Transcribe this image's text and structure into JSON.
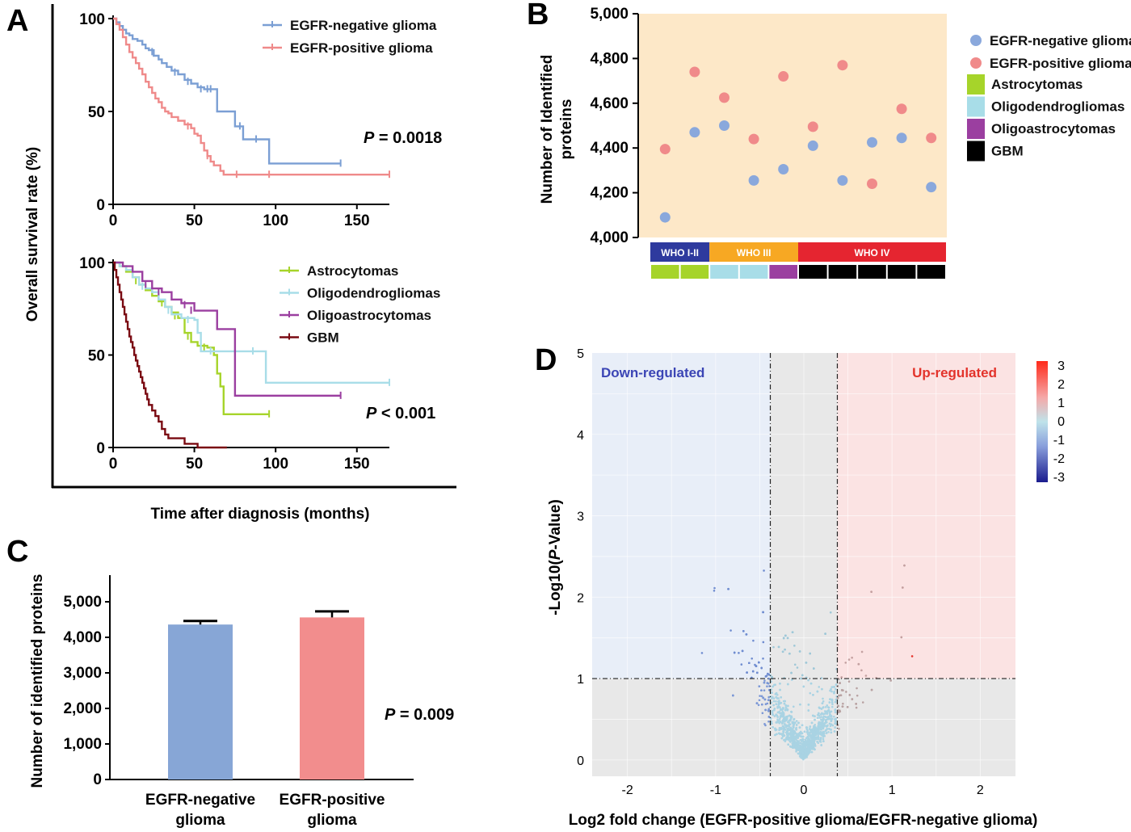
{
  "panels": {
    "a": "A",
    "b": "B",
    "c": "C",
    "d": "D"
  },
  "colors": {
    "egfr_neg_line": "#7b9fd4",
    "egfr_pos_line": "#ef8a8a",
    "astro": "#a6d42a",
    "oligo": "#a8dde8",
    "oligoastro": "#9b3fa0",
    "gbm": "#7a0a12",
    "egfr_neg_bar": "#87a6d6",
    "egfr_pos_bar": "#f28d8d",
    "who12": "#2e3a9e",
    "who3": "#f7a823",
    "who4": "#e52530",
    "scatter_bg": "#fde8c8",
    "down_bg": "#e8eef8",
    "up_bg": "#fbe3e3",
    "mid_bg": "#e8e8e8"
  },
  "chart_data": [
    {
      "id": "A-top",
      "type": "line",
      "subtype": "kaplan-meier",
      "xlabel": "Time after diagnosis (months)",
      "ylabel": "Overall survival rate (%)",
      "xlim": [
        0,
        170
      ],
      "ylim": [
        0,
        100
      ],
      "xticks": [
        "0",
        "50",
        "100",
        "150"
      ],
      "yticks": [
        "0",
        "50",
        "100"
      ],
      "pvalue_label": "P",
      "pvalue_text": " = 0.0018",
      "legend_position": "top-right",
      "series": [
        {
          "name": "EGFR-negative glioma",
          "points": [
            [
              0,
              100
            ],
            [
              2,
              98
            ],
            [
              4,
              96
            ],
            [
              6,
              94
            ],
            [
              8,
              92
            ],
            [
              10,
              91
            ],
            [
              12,
              89
            ],
            [
              15,
              88
            ],
            [
              18,
              86
            ],
            [
              20,
              84
            ],
            [
              22,
              83
            ],
            [
              25,
              80
            ],
            [
              28,
              78
            ],
            [
              30,
              76
            ],
            [
              33,
              74
            ],
            [
              36,
              72
            ],
            [
              40,
              70
            ],
            [
              44,
              67
            ],
            [
              48,
              65
            ],
            [
              52,
              63
            ],
            [
              56,
              62
            ],
            [
              62,
              62
            ],
            [
              64,
              50
            ],
            [
              74,
              50
            ],
            [
              75,
              42
            ],
            [
              80,
              35
            ],
            [
              95,
              35
            ],
            [
              96,
              22
            ],
            [
              140,
              22
            ]
          ],
          "censored": [
            [
              24,
              82
            ],
            [
              38,
              71
            ],
            [
              46,
              66
            ],
            [
              54,
              62
            ],
            [
              58,
              62
            ],
            [
              60,
              62
            ],
            [
              78,
              42
            ],
            [
              88,
              35
            ],
            [
              140,
              22
            ]
          ]
        },
        {
          "name": "EGFR-positive glioma",
          "points": [
            [
              0,
              100
            ],
            [
              2,
              97
            ],
            [
              4,
              94
            ],
            [
              6,
              90
            ],
            [
              8,
              86
            ],
            [
              10,
              82
            ],
            [
              12,
              79
            ],
            [
              14,
              76
            ],
            [
              16,
              73
            ],
            [
              18,
              70
            ],
            [
              20,
              66
            ],
            [
              22,
              63
            ],
            [
              24,
              60
            ],
            [
              26,
              57
            ],
            [
              28,
              55
            ],
            [
              30,
              52
            ],
            [
              32,
              50
            ],
            [
              34,
              49
            ],
            [
              36,
              47
            ],
            [
              40,
              45
            ],
            [
              44,
              43
            ],
            [
              48,
              41
            ],
            [
              50,
              38
            ],
            [
              52,
              37
            ],
            [
              54,
              33
            ],
            [
              56,
              29
            ],
            [
              58,
              26
            ],
            [
              60,
              23
            ],
            [
              62,
              21
            ],
            [
              66,
              18
            ],
            [
              68,
              16
            ],
            [
              170,
              16
            ]
          ],
          "censored": [
            [
              46,
              42
            ],
            [
              58,
              26
            ],
            [
              76,
              16
            ],
            [
              96,
              16
            ],
            [
              170,
              16
            ]
          ]
        }
      ]
    },
    {
      "id": "A-bottom",
      "type": "line",
      "subtype": "kaplan-meier",
      "xlabel": "Time after diagnosis (months)",
      "ylabel": "Overall survival rate (%)",
      "xlim": [
        0,
        170
      ],
      "ylim": [
        0,
        100
      ],
      "xticks": [
        "0",
        "50",
        "100",
        "150"
      ],
      "yticks": [
        "0",
        "50",
        "100"
      ],
      "pvalue_label": "P",
      "pvalue_text": " < 0.001",
      "legend_position": "top-right",
      "series": [
        {
          "name": "Astrocytomas",
          "points": [
            [
              0,
              100
            ],
            [
              4,
              98
            ],
            [
              8,
              95
            ],
            [
              12,
              92
            ],
            [
              16,
              88
            ],
            [
              20,
              85
            ],
            [
              24,
              82
            ],
            [
              28,
              79
            ],
            [
              32,
              76
            ],
            [
              36,
              73
            ],
            [
              40,
              70
            ],
            [
              44,
              62
            ],
            [
              48,
              57
            ],
            [
              52,
              55
            ],
            [
              58,
              54
            ],
            [
              62,
              50
            ],
            [
              64,
              40
            ],
            [
              66,
              33
            ],
            [
              68,
              18
            ],
            [
              96,
              18
            ]
          ],
          "censored": [
            [
              14,
              90
            ],
            [
              30,
              78
            ],
            [
              38,
              71
            ],
            [
              46,
              60
            ],
            [
              56,
              54
            ],
            [
              96,
              18
            ]
          ]
        },
        {
          "name": "Oligodendrogliomas",
          "points": [
            [
              0,
              100
            ],
            [
              4,
              98
            ],
            [
              8,
              96
            ],
            [
              12,
              92
            ],
            [
              16,
              88
            ],
            [
              20,
              86
            ],
            [
              24,
              84
            ],
            [
              28,
              80
            ],
            [
              32,
              76
            ],
            [
              36,
              72
            ],
            [
              42,
              70
            ],
            [
              50,
              69
            ],
            [
              52,
              62
            ],
            [
              54,
              52
            ],
            [
              90,
              52
            ],
            [
              94,
              35
            ],
            [
              170,
              35
            ]
          ],
          "censored": [
            [
              18,
              87
            ],
            [
              34,
              74
            ],
            [
              46,
              69
            ],
            [
              60,
              52
            ],
            [
              86,
              52
            ],
            [
              170,
              35
            ]
          ]
        },
        {
          "name": "Oligoastrocytomas",
          "points": [
            [
              0,
              100
            ],
            [
              6,
              98
            ],
            [
              12,
              95
            ],
            [
              18,
              90
            ],
            [
              24,
              86
            ],
            [
              30,
              84
            ],
            [
              36,
              80
            ],
            [
              42,
              78
            ],
            [
              50,
              74
            ],
            [
              62,
              74
            ],
            [
              64,
              64
            ],
            [
              74,
              64
            ],
            [
              75,
              28
            ],
            [
              140,
              28
            ]
          ],
          "censored": [
            [
              20,
              88
            ],
            [
              28,
              84
            ],
            [
              44,
              77
            ],
            [
              48,
              74
            ],
            [
              140,
              28
            ]
          ]
        },
        {
          "name": "GBM",
          "points": [
            [
              0,
              100
            ],
            [
              1,
              96
            ],
            [
              2,
              92
            ],
            [
              3,
              88
            ],
            [
              4,
              84
            ],
            [
              5,
              80
            ],
            [
              6,
              76
            ],
            [
              7,
              72
            ],
            [
              8,
              68
            ],
            [
              9,
              64
            ],
            [
              10,
              60
            ],
            [
              11,
              57
            ],
            [
              12,
              54
            ],
            [
              13,
              50
            ],
            [
              14,
              47
            ],
            [
              15,
              44
            ],
            [
              16,
              41
            ],
            [
              17,
              38
            ],
            [
              18,
              35
            ],
            [
              19,
              32
            ],
            [
              20,
              29
            ],
            [
              21,
              26
            ],
            [
              22,
              23
            ],
            [
              24,
              20
            ],
            [
              26,
              17
            ],
            [
              28,
              14
            ],
            [
              30,
              10
            ],
            [
              32,
              7
            ],
            [
              34,
              5
            ],
            [
              40,
              5
            ],
            [
              44,
              2
            ],
            [
              50,
              2
            ],
            [
              52,
              0
            ],
            [
              70,
              0
            ]
          ],
          "censored": []
        }
      ]
    },
    {
      "id": "B",
      "type": "scatter",
      "ylabel": "Number of Identified proteins",
      "ylim": [
        4000,
        5000
      ],
      "yticks": [
        "4,000",
        "4,200",
        "4,400",
        "4,600",
        "4,800",
        "5,000"
      ],
      "legend_position": "right",
      "n_samples": 10,
      "series": [
        {
          "name": "EGFR-negative glioma",
          "values": [
            4090,
            4470,
            4500,
            4255,
            4305,
            4410,
            4255,
            4425,
            4445,
            4225
          ]
        },
        {
          "name": "EGFR-positive glioma",
          "values": [
            4395,
            4740,
            4625,
            4440,
            4720,
            4495,
            4770,
            4240,
            4575,
            4445
          ]
        }
      ],
      "grades": [
        {
          "label": "WHO I-II",
          "from": 0,
          "to": 2
        },
        {
          "label": "WHO III",
          "from": 2,
          "to": 5
        },
        {
          "label": "WHO IV",
          "from": 5,
          "to": 10
        }
      ],
      "histology": [
        "Astrocytomas",
        "Astrocytomas",
        "Oligodendrogliomas",
        "Oligodendrogliomas",
        "Oligoastrocytomas",
        "GBM",
        "GBM",
        "GBM",
        "GBM",
        "GBM"
      ],
      "histology_legend": [
        "Astrocytomas",
        "Oligodendrogliomas",
        "Oligoastrocytomas",
        "GBM"
      ]
    },
    {
      "id": "C",
      "type": "bar",
      "categories": [
        "EGFR-negative glioma",
        "EGFR-positive glioma"
      ],
      "category_lines": [
        [
          "EGFR-negative",
          "glioma"
        ],
        [
          "EGFR-positive",
          "glioma"
        ]
      ],
      "values": [
        4360,
        4560
      ],
      "errors": [
        100,
        170
      ],
      "ylabel": "Number of identified proteins",
      "ylim": [
        0,
        5000
      ],
      "yticks": [
        "0",
        "1,000",
        "2,000",
        "3,000",
        "4,000",
        "5,000"
      ],
      "pvalue_label": "P",
      "pvalue_text": " = 0.009"
    },
    {
      "id": "D",
      "type": "scatter",
      "subtype": "volcano",
      "xlabel": "Log2 fold change (EGFR-positive glioma/EGFR-negative glioma)",
      "ylabel": "-Log10(P-Value)",
      "ylabel_parts": [
        "-Log10(",
        "P",
        "-Value)"
      ],
      "xlim": [
        -2.4,
        2.4
      ],
      "ylim": [
        -0.2,
        5
      ],
      "xticks": [
        "-2",
        "-1",
        "0",
        "1",
        "2"
      ],
      "yticks": [
        "0",
        "1",
        "2",
        "3",
        "4",
        "5"
      ],
      "fc_threshold": 0.38,
      "p_threshold": 1,
      "down_label": "Down-regulated",
      "up_label": "Up-regulated",
      "colorbar_ticks": [
        "3",
        "2",
        "1",
        "0",
        "-1",
        "-2",
        "-3"
      ],
      "colorbar_range": [
        -3,
        3
      ],
      "n_points_approx": 2500
    }
  ]
}
